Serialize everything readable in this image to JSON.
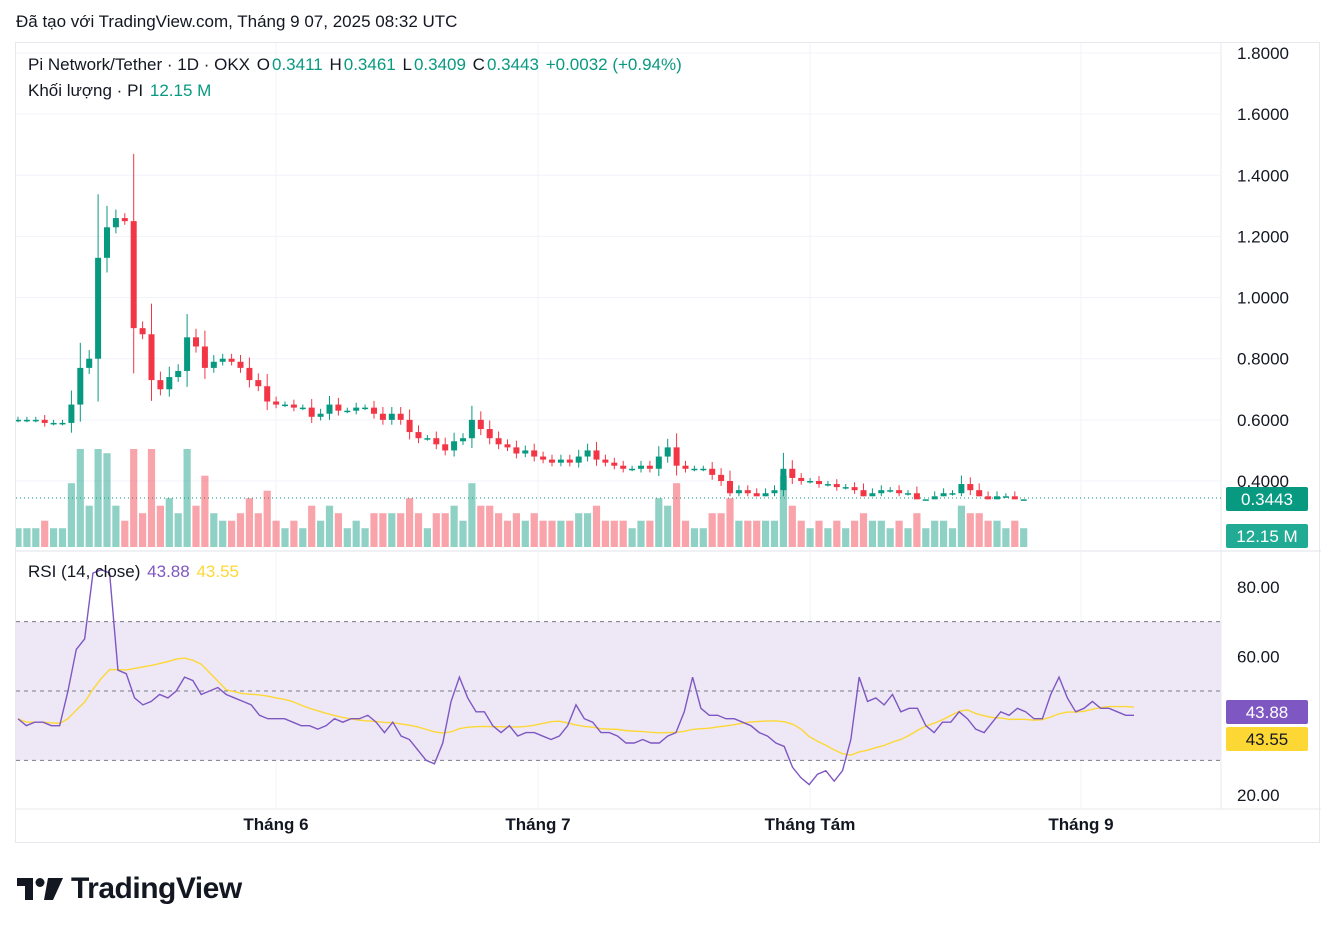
{
  "header": {
    "title": "Đã tạo với TradingView.com, Tháng 9 07, 2025 08:32 UTC"
  },
  "legend": {
    "symbol": "Pi Network/Tether · 1D · OKX",
    "open_label": "O",
    "open": "0.3411",
    "high_label": "H",
    "high": "0.3461",
    "low_label": "L",
    "low": "0.3409",
    "close_label": "C",
    "close": "0.3443",
    "change": "+0.0032 (+0.94%)",
    "volume_label": "Khối lượng · PI",
    "volume": "12.15 M"
  },
  "rsi_legend": {
    "label": "RSI (14, close)",
    "rsi": "43.88",
    "ma": "43.55"
  },
  "badges": {
    "price": "0.3443",
    "volume": "12.15 M",
    "rsi": "43.88",
    "rsi_ma": "43.55"
  },
  "logo": {
    "text": "TradingView"
  },
  "colors": {
    "up": "#089981",
    "down": "#f23645",
    "rsi": "#7e57c2",
    "rsi_ma": "#fdd835",
    "rsi_band": "#ede7f6"
  },
  "chart_data": [
    {
      "type": "candlestick",
      "title": "Pi Network/Tether · 1D · OKX",
      "x_ticks": [
        "Tháng 6",
        "Tháng 7",
        "Tháng Tám",
        "Tháng 9"
      ],
      "y_ticks": [
        "1.8000",
        "1.6000",
        "1.4000",
        "1.2000",
        "1.0000",
        "0.8000",
        "0.6000",
        "0.4000"
      ],
      "ylim": [
        0.2,
        1.8
      ],
      "grid": true,
      "current_price": 0.3443,
      "close": [
        0.6,
        0.6,
        0.6,
        0.59,
        0.59,
        0.59,
        0.65,
        0.77,
        0.8,
        1.13,
        1.23,
        1.26,
        1.25,
        0.9,
        0.88,
        0.73,
        0.7,
        0.74,
        0.76,
        0.87,
        0.84,
        0.77,
        0.79,
        0.8,
        0.79,
        0.77,
        0.73,
        0.71,
        0.66,
        0.65,
        0.65,
        0.64,
        0.64,
        0.61,
        0.62,
        0.65,
        0.63,
        0.63,
        0.64,
        0.64,
        0.62,
        0.6,
        0.62,
        0.6,
        0.56,
        0.54,
        0.54,
        0.52,
        0.5,
        0.53,
        0.54,
        0.6,
        0.57,
        0.54,
        0.52,
        0.51,
        0.49,
        0.5,
        0.48,
        0.47,
        0.46,
        0.47,
        0.46,
        0.48,
        0.5,
        0.47,
        0.46,
        0.45,
        0.44,
        0.44,
        0.45,
        0.44,
        0.48,
        0.51,
        0.45,
        0.44,
        0.44,
        0.44,
        0.42,
        0.4,
        0.36,
        0.37,
        0.36,
        0.35,
        0.36,
        0.37,
        0.44,
        0.41,
        0.4,
        0.4,
        0.39,
        0.39,
        0.38,
        0.38,
        0.37,
        0.35,
        0.36,
        0.37,
        0.37,
        0.36,
        0.36,
        0.34,
        0.34,
        0.35,
        0.36,
        0.36,
        0.39,
        0.37,
        0.35,
        0.34,
        0.35,
        0.35,
        0.34,
        0.34
      ],
      "volume_unit": "M",
      "volume_latest": 12.15
    },
    {
      "type": "line",
      "title": "RSI (14, close)",
      "y_ticks": [
        "80.00",
        "60.00",
        "20.00"
      ],
      "ylim": [
        20,
        85
      ],
      "bands": [
        30,
        50,
        70
      ],
      "series": [
        {
          "name": "RSI",
          "latest": 43.88,
          "values": [
            42,
            40,
            41,
            41,
            40,
            40,
            50,
            62,
            65,
            84,
            85,
            84,
            56,
            55,
            48,
            46,
            47,
            49,
            48,
            50,
            54,
            53,
            49,
            50,
            51,
            49,
            48,
            47,
            46,
            43,
            42,
            42,
            42,
            41,
            40,
            40,
            39,
            40,
            42,
            41,
            42,
            42,
            43,
            41,
            38,
            41,
            37,
            36,
            33,
            30,
            29,
            35,
            47,
            54,
            48,
            44,
            44,
            40,
            38,
            40,
            37,
            38,
            38,
            37,
            36,
            37,
            40,
            46,
            42,
            41,
            38,
            38,
            37,
            35,
            35,
            36,
            35,
            35,
            37,
            38,
            44,
            54,
            45,
            43,
            43,
            42,
            42,
            41,
            40,
            38,
            37,
            35,
            34,
            28,
            25,
            23,
            26,
            27,
            24,
            27,
            36,
            54,
            47,
            48,
            46,
            49,
            44,
            45,
            45,
            40,
            38,
            41,
            41,
            44,
            42,
            39,
            38,
            41,
            44,
            43,
            45,
            44,
            42,
            42,
            49,
            54,
            48,
            44,
            45,
            47,
            45,
            45,
            44,
            43,
            43
          ],
          "note": "RSI series values estimated"
        },
        {
          "name": "MA",
          "latest": 43.55
        }
      ]
    }
  ]
}
